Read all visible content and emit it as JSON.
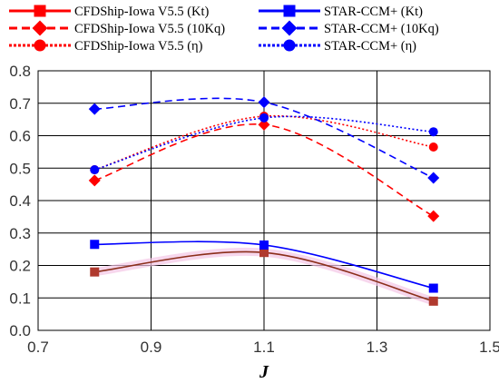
{
  "chart_data": {
    "type": "line",
    "title": "",
    "xlabel": "J",
    "ylabel": "",
    "xlim": [
      0.7,
      1.5
    ],
    "ylim": [
      0.0,
      0.8
    ],
    "xticks": [
      "0.7",
      "0.9",
      "1.1",
      "1.3",
      "1.5"
    ],
    "yticks": [
      "0.0",
      "0.1",
      "0.2",
      "0.3",
      "0.4",
      "0.5",
      "0.6",
      "0.7",
      "0.8"
    ],
    "grid": true,
    "legend_position": "top",
    "x": [
      0.8,
      1.1,
      1.4
    ],
    "series": [
      {
        "name": "CFDShip-Iowa V5.5 (Kt)",
        "values": [
          0.18,
          0.24,
          0.09
        ],
        "color": "#ff0000",
        "points_color": "#b03a2e",
        "dash": "solid",
        "marker": "square"
      },
      {
        "name": "CFDShip-Iowa V5.5 (10Kq)",
        "values": [
          0.462,
          0.634,
          0.352
        ],
        "color": "#ff0000",
        "points_color": "#ff0000",
        "dash": "dashed",
        "marker": "diamond"
      },
      {
        "name": "CFDShip-Iowa V5.5 (η)",
        "values": [
          0.495,
          0.66,
          0.565
        ],
        "color": "#ff0000",
        "points_color": "#ff0000",
        "dash": "dotted",
        "marker": "circle"
      },
      {
        "name": "STAR-CCM+ (Kt)",
        "values": [
          0.265,
          0.263,
          0.13
        ],
        "color": "#0000ff",
        "points_color": "#0000ff",
        "dash": "solid",
        "marker": "square"
      },
      {
        "name": "STAR-CCM+ (10Kq)",
        "values": [
          0.682,
          0.703,
          0.47
        ],
        "color": "#0000ff",
        "points_color": "#0000ff",
        "dash": "dashed",
        "marker": "diamond"
      },
      {
        "name": "STAR-CCM+ (η)",
        "values": [
          0.495,
          0.655,
          0.612
        ],
        "color": "#0000ff",
        "points_color": "#0000ff",
        "dash": "dotted",
        "marker": "circle"
      }
    ],
    "trend_line": {
      "series_index": 0,
      "color": "#8b2e1a"
    }
  }
}
